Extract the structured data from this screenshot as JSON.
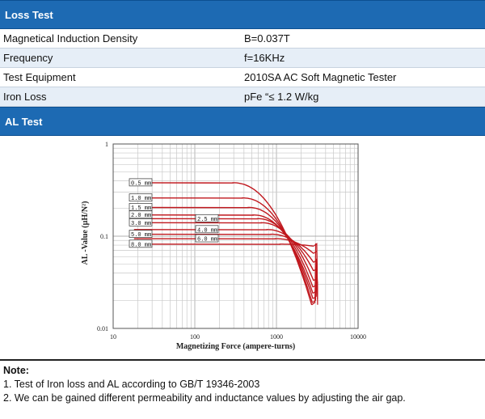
{
  "loss_test": {
    "title": "Loss Test",
    "rows": [
      {
        "label": "Magnetical Induction Density",
        "value": "B=0.037T"
      },
      {
        "label": "Frequency",
        "value": "f=16KHz"
      },
      {
        "label": "Test Equipment",
        "value": "2010SA AC Soft Magnetic Tester"
      },
      {
        "label": "Iron Loss",
        "value": "pFe “≤ 1.2 W/kg"
      }
    ]
  },
  "al_test": {
    "title": "AL Test"
  },
  "chart_data": {
    "type": "line",
    "xlabel": "Magnetizing Force (ampere-turns)",
    "ylabel": "AL -Value (µH/N²)",
    "x_scale": "log",
    "y_scale": "log",
    "xlim": [
      10,
      10000
    ],
    "ylim": [
      0.01,
      1
    ],
    "x_ticks": [
      "10",
      "100",
      "1000",
      "10000"
    ],
    "y_ticks": [
      "1",
      "0.1",
      "0.01"
    ],
    "grid": true,
    "line_color": "#c0181e",
    "series": [
      {
        "name": "0.5 mm",
        "plateau": 0.38,
        "knee": 650,
        "end_x": 2700,
        "end_y": 0.018
      },
      {
        "name": "1.0 mm",
        "plateau": 0.26,
        "knee": 850,
        "end_x": 2750,
        "end_y": 0.019
      },
      {
        "name": "1.5 mm",
        "plateau": 0.205,
        "knee": 1000,
        "end_x": 2800,
        "end_y": 0.021
      },
      {
        "name": "2.0 mm",
        "plateau": 0.17,
        "knee": 1150,
        "end_x": 2800,
        "end_y": 0.024
      },
      {
        "name": "2.5 mm",
        "plateau": 0.155,
        "knee": 1300,
        "end_x": 2800,
        "end_y": 0.028
      },
      {
        "name": "3.0 mm",
        "plateau": 0.14,
        "knee": 1450,
        "end_x": 2850,
        "end_y": 0.033
      },
      {
        "name": "4.0 mm",
        "plateau": 0.118,
        "knee": 1700,
        "end_x": 2850,
        "end_y": 0.042
      },
      {
        "name": "5.0 mm",
        "plateau": 0.105,
        "knee": 1900,
        "end_x": 2850,
        "end_y": 0.052
      },
      {
        "name": "6.0 mm",
        "plateau": 0.094,
        "knee": 2150,
        "end_x": 2850,
        "end_y": 0.065
      },
      {
        "name": "8.0 mm",
        "plateau": 0.082,
        "knee": 2450,
        "end_x": 2850,
        "end_y": 0.078
      }
    ]
  },
  "notes": {
    "title": "Note:",
    "items": [
      "1. Test of Iron loss and AL according to GB/T 19346-2003",
      "2. We can be gained different permeability and inductance values by adjusting the air gap."
    ]
  }
}
